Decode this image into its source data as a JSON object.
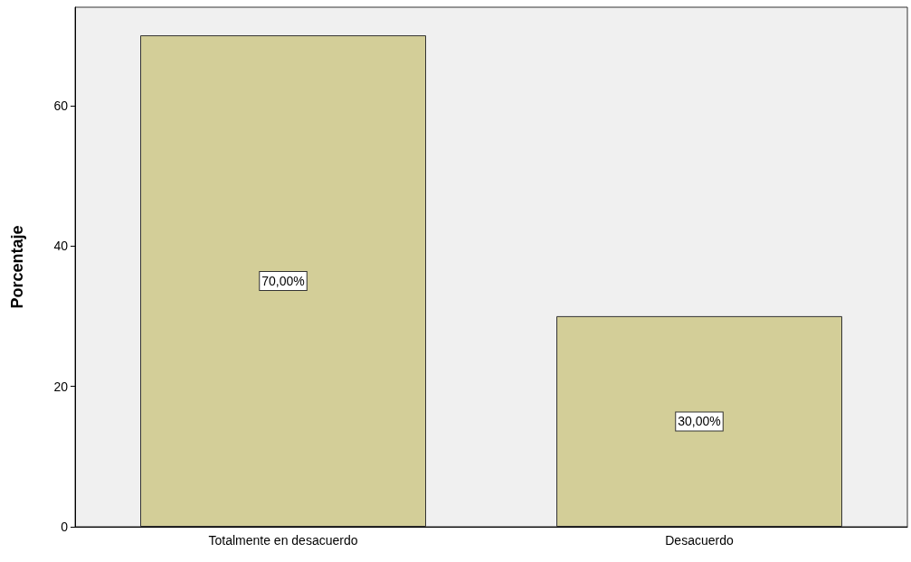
{
  "chart_data": {
    "type": "bar",
    "ylabel": "Porcentaje",
    "categories": [
      "Totalmente en desacuerdo",
      "Desacuerdo"
    ],
    "values": [
      70,
      30
    ],
    "value_labels": [
      "70,00%",
      "30,00%"
    ],
    "color": "#d3ce98",
    "ylim": [
      0,
      74
    ],
    "yticks": [
      0,
      20,
      40,
      60
    ]
  }
}
